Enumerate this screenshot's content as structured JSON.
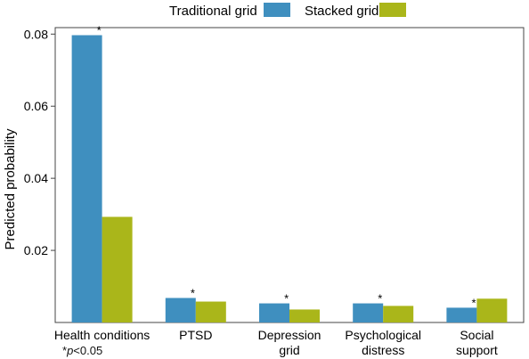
{
  "chart_data": {
    "type": "bar",
    "categories": [
      [
        "Health conditions"
      ],
      [
        "PTSD"
      ],
      [
        "Depression",
        "grid"
      ],
      [
        "Psychological",
        "distress"
      ],
      [
        "Social",
        "support"
      ]
    ],
    "series": [
      {
        "name": "Traditional grid",
        "color": "#3f8fbf",
        "values": [
          0.0797,
          0.0068,
          0.0053,
          0.0053,
          0.0041
        ]
      },
      {
        "name": "Stacked grid",
        "color": "#aab61a",
        "values": [
          0.0293,
          0.0058,
          0.0036,
          0.0046,
          0.0066
        ]
      }
    ],
    "significant": [
      true,
      true,
      true,
      true,
      true
    ],
    "ylabel": "Predicted probability",
    "yticks": [
      0.02,
      0.04,
      0.06,
      0.08
    ],
    "ylim": [
      0,
      0.0818
    ],
    "legend_position": "top",
    "grid": false,
    "annotation_marker": "*",
    "footnote": {
      "prefix": "*",
      "italic": "p",
      "suffix": "<0.05"
    }
  }
}
